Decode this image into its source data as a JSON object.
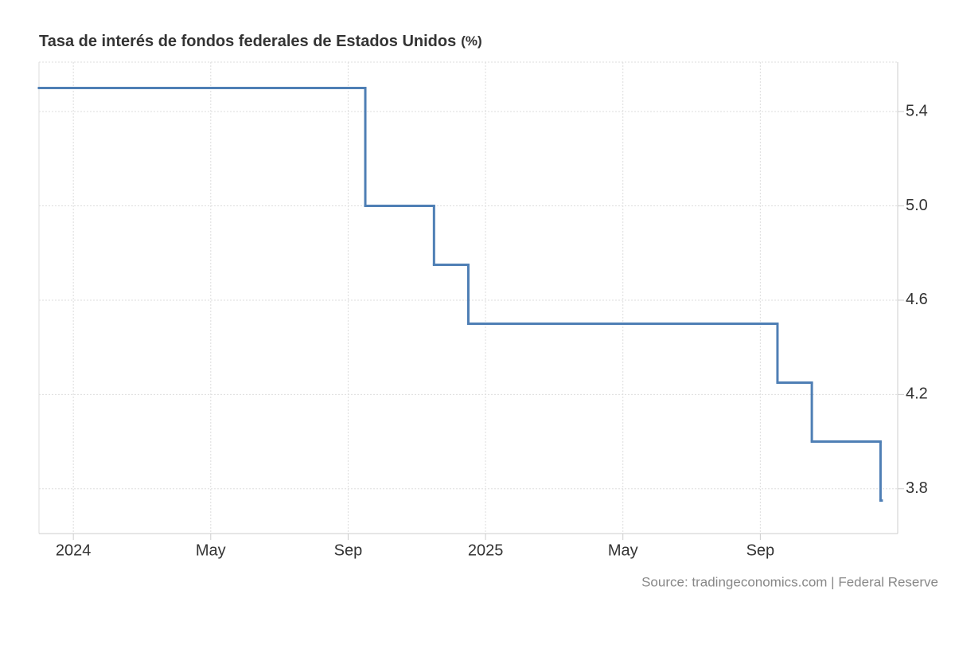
{
  "chart_data": {
    "type": "step-line",
    "title": "Tasa de interés de fondos federales de Estados Unidos",
    "unit": "(%)",
    "source": "Source: tradingeconomics.com | Federal Reserve",
    "x": [
      "2023-12",
      "2024-09",
      "2024-11",
      "2024-12",
      "2025-09",
      "2025-10",
      "2025-12"
    ],
    "series": [
      {
        "name": "Tasa de interés de fondos federales de Estados Unidos",
        "color": "#4f7fb5",
        "values": [
          5.5,
          5.0,
          4.75,
          4.5,
          4.25,
          4.0,
          3.75
        ]
      }
    ],
    "xlim": [
      "2023-12",
      "2025-12"
    ],
    "xticks": [
      {
        "value": "2024-01",
        "label": "2024"
      },
      {
        "value": "2024-05",
        "label": "May"
      },
      {
        "value": "2024-09",
        "label": "Sep"
      },
      {
        "value": "2025-01",
        "label": "2025"
      },
      {
        "value": "2025-05",
        "label": "May"
      },
      {
        "value": "2025-09",
        "label": "Sep"
      }
    ],
    "ylim": [
      3.61,
      5.61
    ],
    "yticks": [
      3.8,
      4.2,
      4.6,
      {
        "value": 5,
        "label": "5.0"
      },
      5.4
    ],
    "grid": true
  }
}
